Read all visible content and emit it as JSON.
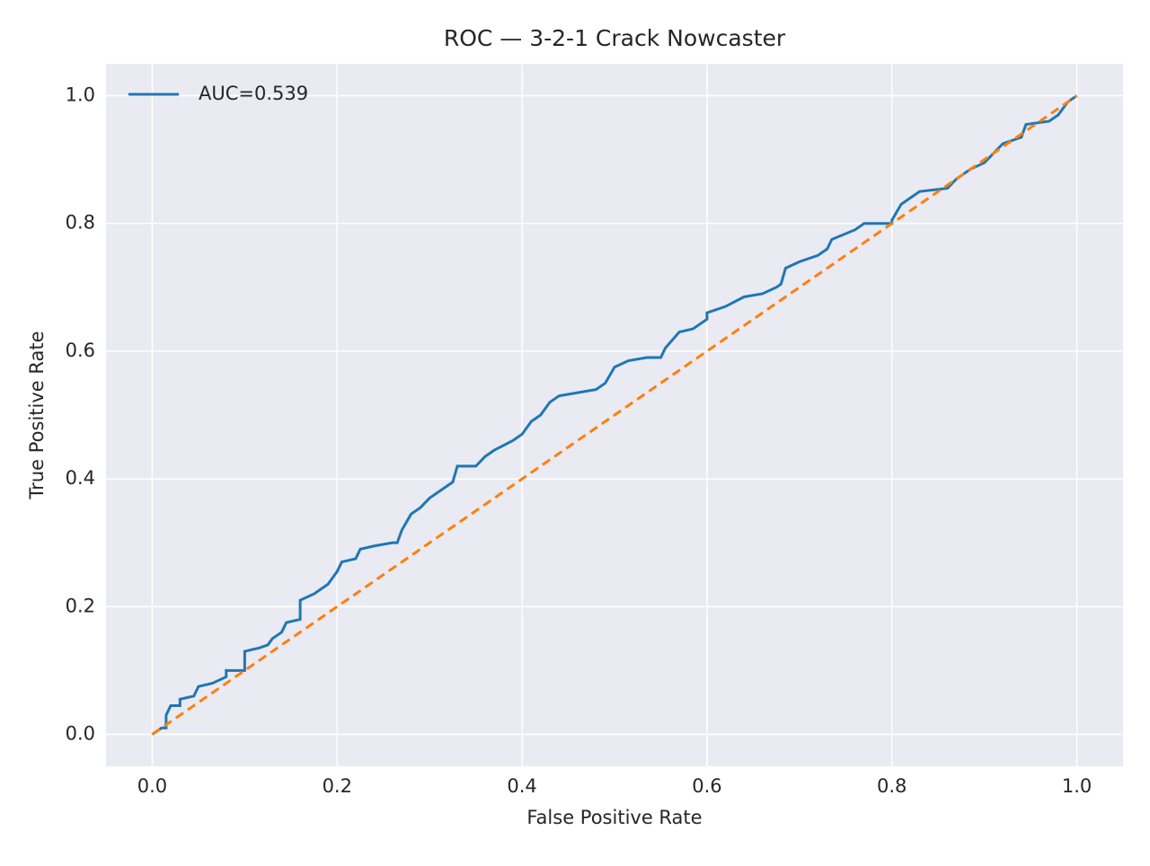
{
  "chart_data": {
    "type": "line",
    "title": "ROC — 3-2-1 Crack Nowcaster",
    "xlabel": "False Positive Rate",
    "ylabel": "True Positive Rate",
    "xlim": [
      -0.05,
      1.05
    ],
    "ylim": [
      -0.05,
      1.05
    ],
    "xticks": [
      {
        "value": 0,
        "label": "0.0"
      },
      0.2,
      0.4,
      0.6,
      0.8,
      {
        "value": 1,
        "label": "1.0"
      }
    ],
    "yticks": [
      {
        "value": 0,
        "label": "0.0"
      },
      0.2,
      0.4,
      0.6,
      0.8,
      {
        "value": 1,
        "label": "1.0"
      }
    ],
    "grid": true,
    "legend": "upper left",
    "series": [
      {
        "name": "AUC=0.539",
        "color": "#1f77b4",
        "x": [
          0,
          0.01,
          0.015,
          0.015,
          0.02,
          0.03,
          0.03,
          0.045,
          0.05,
          0.065,
          0.08,
          0.08,
          0.1,
          0.1,
          0.115,
          0.125,
          0.13,
          0.14,
          0.145,
          0.16,
          0.16,
          0.175,
          0.19,
          0.2,
          0.205,
          0.22,
          0.225,
          0.24,
          0.26,
          0.265,
          0.27,
          0.28,
          0.29,
          0.3,
          0.315,
          0.325,
          0.33,
          0.35,
          0.36,
          0.37,
          0.39,
          0.4,
          0.41,
          0.42,
          0.43,
          0.44,
          0.46,
          0.48,
          0.49,
          0.5,
          0.515,
          0.535,
          0.55,
          0.555,
          0.57,
          0.585,
          0.6,
          0.6,
          0.62,
          0.64,
          0.66,
          0.675,
          0.68,
          0.685,
          0.7,
          0.72,
          0.73,
          0.735,
          0.76,
          0.77,
          0.8,
          0.8,
          0.81,
          0.82,
          0.83,
          0.86,
          0.87,
          0.885,
          0.9,
          0.91,
          0.92,
          0.94,
          0.945,
          0.97,
          0.98,
          0.99,
          1
        ],
        "values": [
          0,
          0.01,
          0.01,
          0.03,
          0.045,
          0.045,
          0.055,
          0.06,
          0.075,
          0.08,
          0.09,
          0.1,
          0.1,
          0.13,
          0.135,
          0.14,
          0.15,
          0.16,
          0.175,
          0.18,
          0.21,
          0.22,
          0.235,
          0.255,
          0.27,
          0.275,
          0.29,
          0.295,
          0.3,
          0.3,
          0.32,
          0.345,
          0.355,
          0.37,
          0.385,
          0.395,
          0.42,
          0.42,
          0.435,
          0.445,
          0.46,
          0.47,
          0.49,
          0.5,
          0.52,
          0.53,
          0.535,
          0.54,
          0.55,
          0.575,
          0.585,
          0.59,
          0.59,
          0.605,
          0.63,
          0.635,
          0.65,
          0.66,
          0.67,
          0.685,
          0.69,
          0.7,
          0.705,
          0.73,
          0.74,
          0.75,
          0.76,
          0.775,
          0.79,
          0.8,
          0.8,
          0.805,
          0.83,
          0.84,
          0.85,
          0.855,
          0.87,
          0.885,
          0.895,
          0.91,
          0.925,
          0.935,
          0.955,
          0.96,
          0.97,
          0.99,
          1
        ]
      },
      {
        "color": "#ff7f0e",
        "dashed": true,
        "x": [
          0,
          1
        ],
        "values": [
          0,
          1
        ]
      }
    ]
  }
}
